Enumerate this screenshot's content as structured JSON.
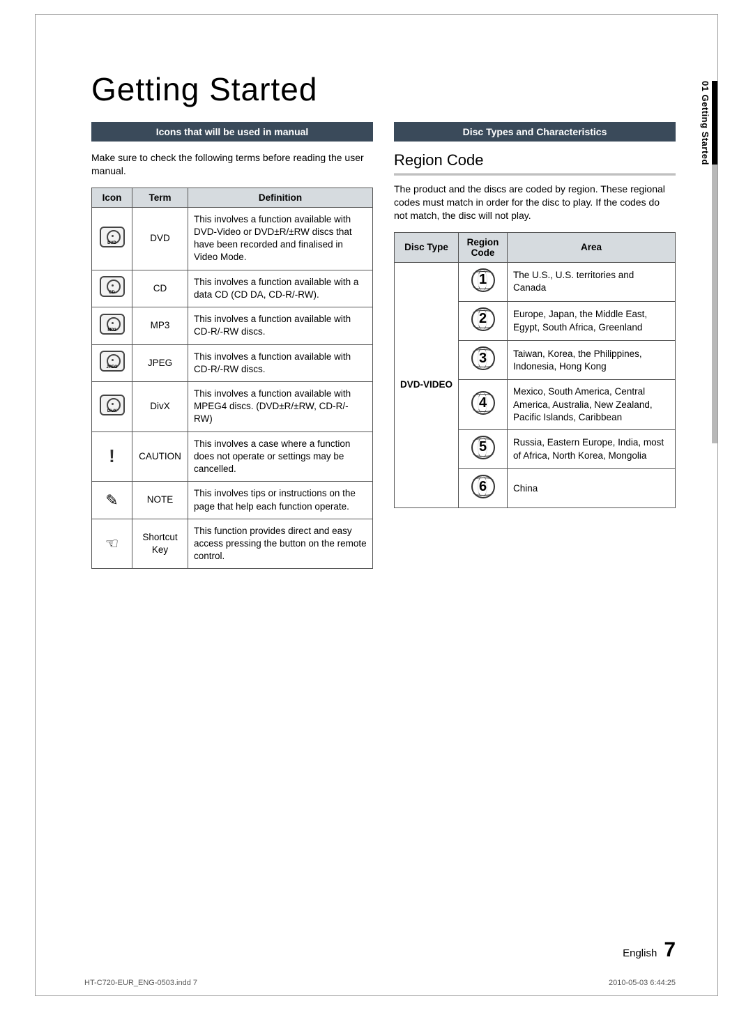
{
  "page": {
    "title": "Getting Started",
    "side_tab": "01   Getting Started",
    "footer_lang": "English",
    "footer_page": "7",
    "imprint_left": "HT-C720-EUR_ENG-0503.indd   7",
    "imprint_right": "2010-05-03     6:44:25"
  },
  "left": {
    "header": "Icons that will be used in manual",
    "intro": "Make sure to check the following terms before reading the user manual.",
    "table": {
      "columns": [
        "Icon",
        "Term",
        "Definition"
      ],
      "rows": [
        {
          "icon_label": "DVD",
          "icon_type": "disc",
          "term": "DVD",
          "def": "This involves a function available with DVD-Video or DVD±R/±RW discs that have been recorded and finalised in Video Mode."
        },
        {
          "icon_label": "CD",
          "icon_type": "disc",
          "term": "CD",
          "def": "This involves a function available with a data CD (CD DA, CD-R/-RW)."
        },
        {
          "icon_label": "MP3",
          "icon_type": "disc",
          "term": "MP3",
          "def": "This involves a function available with CD-R/-RW discs."
        },
        {
          "icon_label": "JPEG",
          "icon_type": "disc",
          "term": "JPEG",
          "def": "This involves a function available with CD-R/-RW discs."
        },
        {
          "icon_label": "DivX",
          "icon_type": "disc",
          "term": "DivX",
          "def": "This involves a function available with MPEG4 discs. (DVD±R/±RW, CD-R/-RW)"
        },
        {
          "icon_label": "",
          "icon_type": "caution",
          "term": "CAUTION",
          "def": "This involves a case where a function does not operate or settings may be cancelled."
        },
        {
          "icon_label": "",
          "icon_type": "note",
          "term": "NOTE",
          "def": "This involves tips or instructions on the page that help each function operate."
        },
        {
          "icon_label": "",
          "icon_type": "hand",
          "term": "Shortcut Key",
          "def": "This function provides direct and easy access pressing the button on the remote control."
        }
      ]
    }
  },
  "right": {
    "header": "Disc Types and Characteristics",
    "subheading": "Region Code",
    "intro": "The product and the discs are coded by region. These regional codes must match in order for the disc to play. If the codes do not match, the disc will not play.",
    "table": {
      "columns": [
        "Disc Type",
        "Region Code",
        "Area"
      ],
      "disc_type": "DVD-VIDEO",
      "rows": [
        {
          "code": "1",
          "area": "The U.S., U.S. territories and Canada"
        },
        {
          "code": "2",
          "area": "Europe, Japan, the Middle East, Egypt, South Africa, Greenland"
        },
        {
          "code": "3",
          "area": "Taiwan, Korea, the Philippines, Indonesia, Hong Kong"
        },
        {
          "code": "4",
          "area": "Mexico, South America, Central America, Australia, New Zealand, Pacific Islands, Caribbean"
        },
        {
          "code": "5",
          "area": "Russia, Eastern Europe, India, most of Africa, North Korea, Mongolia"
        },
        {
          "code": "6",
          "area": "China"
        }
      ]
    }
  },
  "style": {
    "header_bg": "#3a4a5a",
    "header_fg": "#ffffff",
    "th_bg": "#d6dbdf",
    "border": "#555555",
    "title_fontsize": 46,
    "body_fontsize": 13.5
  }
}
